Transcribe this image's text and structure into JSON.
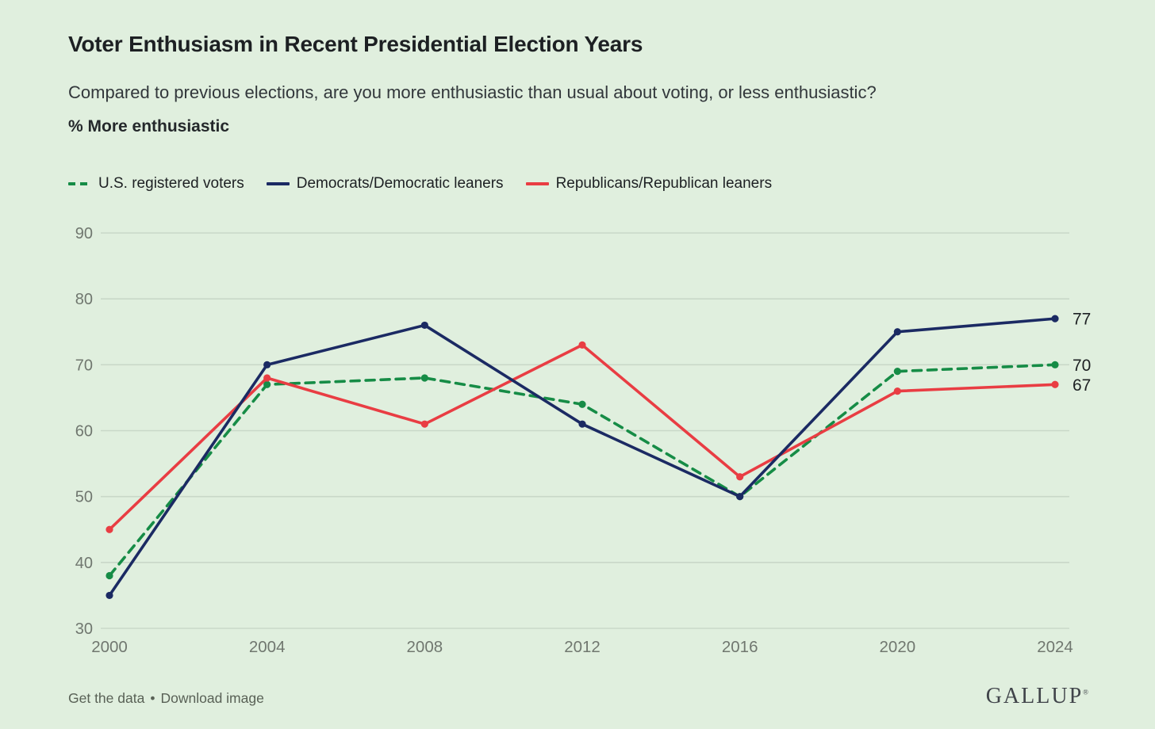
{
  "page": {
    "background_color": "#e0efde"
  },
  "header": {
    "title": "Voter Enthusiasm in Recent Presidential Election Years",
    "subtitle": "Compared to previous elections, are you more enthusiastic than usual about voting, or less enthusiastic?",
    "measure_label": "% More enthusiastic"
  },
  "legend": {
    "items": [
      {
        "label": "U.S. registered voters",
        "color": "#168c46",
        "style": "dashed"
      },
      {
        "label": "Democrats/Democratic leaners",
        "color": "#1b2a63",
        "style": "solid"
      },
      {
        "label": "Republicans/Republican leaners",
        "color": "#e93d43",
        "style": "solid"
      }
    ]
  },
  "chart_data": {
    "type": "line",
    "x": [
      "2000",
      "2004",
      "2008",
      "2012",
      "2016",
      "2020",
      "2024"
    ],
    "series": [
      {
        "name": "U.S. registered voters",
        "values": [
          38,
          67,
          68,
          64,
          50,
          69,
          70
        ],
        "color": "#168c46",
        "dashed": true,
        "end_label": "70"
      },
      {
        "name": "Republicans/Republican leaners",
        "values": [
          45,
          68,
          61,
          73,
          53,
          66,
          67
        ],
        "color": "#e93d43",
        "dashed": false,
        "end_label": "67"
      },
      {
        "name": "Democrats/Democratic leaners",
        "values": [
          35,
          70,
          76,
          61,
          50,
          75,
          77
        ],
        "color": "#1b2a63",
        "dashed": false,
        "end_label": "77"
      }
    ],
    "ylim": [
      30,
      90
    ],
    "yticks": [
      30,
      40,
      50,
      60,
      70,
      80,
      90
    ],
    "grid": true,
    "legend_position": "top",
    "gridline_color": "#c9d8c8",
    "tick_label_color": "#70776f",
    "end_label_color": "#1d2023"
  },
  "footer": {
    "link1": "Get the data",
    "separator": "•",
    "link2": "Download image",
    "brand": "GALLUP",
    "brand_mark": "®"
  }
}
